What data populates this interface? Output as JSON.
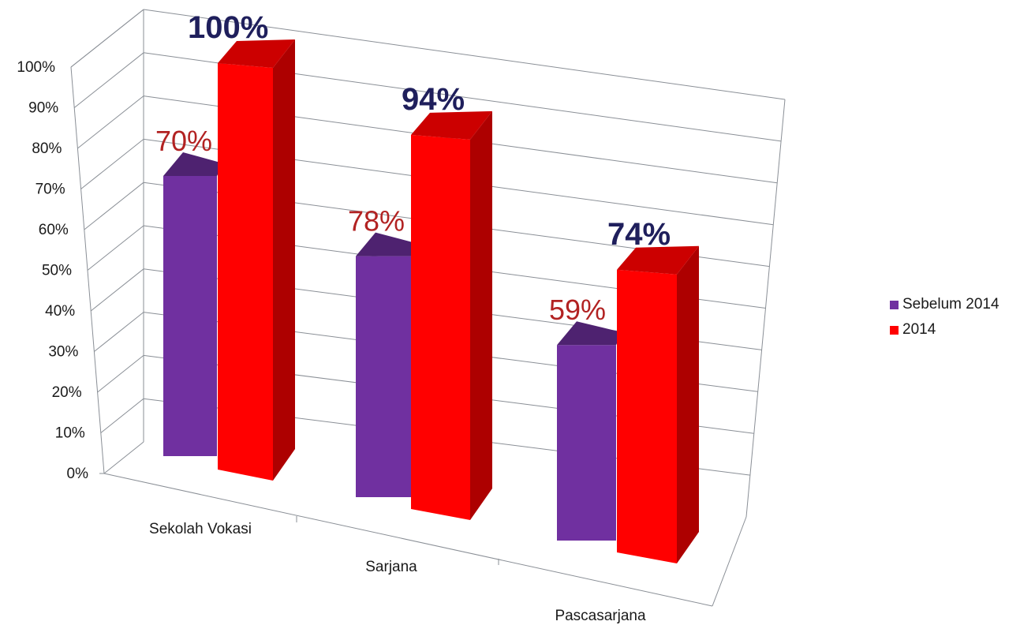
{
  "chart_data": {
    "type": "bar",
    "categories": [
      "Sekolah Vokasi",
      "Sarjana",
      "Pascasarjana"
    ],
    "series": [
      {
        "name": "Sebelum 2014",
        "values": [
          70,
          78,
          59
        ],
        "labels": [
          "70%",
          "78%",
          "59%"
        ],
        "color": "#7030a0"
      },
      {
        "name": "2014",
        "values": [
          100,
          94,
          74
        ],
        "labels": [
          "100%",
          "94%",
          "74%"
        ],
        "color": "#ff0000"
      }
    ],
    "y_ticks": [
      "0%",
      "10%",
      "20%",
      "30%",
      "40%",
      "50%",
      "60%",
      "70%",
      "80%",
      "90%",
      "100%"
    ],
    "ylim": [
      0,
      100
    ],
    "title": "",
    "xlabel": "",
    "ylabel": "",
    "grid": true,
    "legend_position": "right",
    "style": "3d-clustered-column"
  }
}
